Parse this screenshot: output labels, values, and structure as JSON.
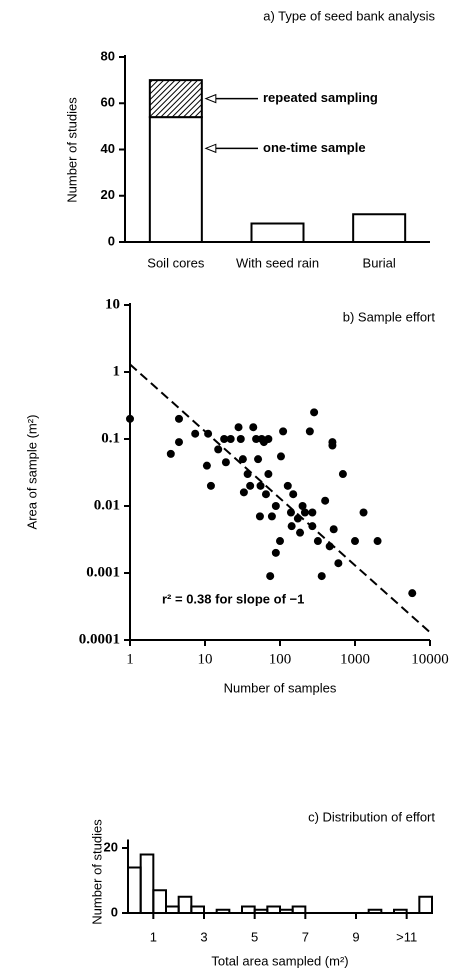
{
  "chart_data": [
    {
      "type": "bar",
      "title": "a) Type of seed bank analysis",
      "y_label": "Number of studies",
      "categories": [
        "Soil cores",
        "With seed rain",
        "Burial"
      ],
      "stacked": true,
      "series": [
        {
          "name": "one-time sample",
          "color": "#ffffff",
          "values": [
            54,
            8,
            12
          ]
        },
        {
          "name": "repeated sampling",
          "color": "#000000",
          "pattern": "hatched",
          "values": [
            16,
            0,
            0
          ]
        }
      ],
      "ylim": [
        0,
        80
      ],
      "yticks": [
        0,
        20,
        40,
        60,
        80
      ]
    },
    {
      "type": "scatter",
      "title": "b) Sample effort",
      "x_label": "Number of samples",
      "y_label": "Area of sample (m²)",
      "annotation": "r² = 0.38 for slope of −1",
      "log_x": true,
      "log_y": true,
      "color": "#000000",
      "x": [
        1,
        4.5,
        3.5,
        4.5,
        7.4,
        10.6,
        11,
        12,
        15,
        18,
        22,
        19,
        28,
        30,
        32,
        33,
        37,
        44,
        48,
        57,
        70,
        51,
        55,
        54,
        61,
        78,
        70,
        88,
        103,
        110,
        127,
        140,
        143,
        100,
        88,
        173,
        74,
        215,
        250,
        285,
        270,
        270,
        320,
        185,
        400,
        360,
        460,
        520,
        600,
        690,
        500,
        500,
        1300,
        1000,
        2000,
        5800,
        150,
        200,
        65,
        40
      ],
      "y": [
        0.2,
        0.2,
        0.06,
        0.09,
        0.12,
        0.04,
        0.12,
        0.02,
        0.07,
        0.1,
        0.1,
        0.045,
        0.15,
        0.1,
        0.05,
        0.016,
        0.03,
        0.15,
        0.1,
        0.1,
        0.1,
        0.05,
        0.02,
        0.007,
        0.09,
        0.007,
        0.03,
        0.01,
        0.055,
        0.13,
        0.02,
        0.008,
        0.005,
        0.003,
        0.002,
        0.0065,
        0.0009,
        0.008,
        0.13,
        0.25,
        0.008,
        0.005,
        0.003,
        0.004,
        0.012,
        0.0009,
        0.0025,
        0.0045,
        0.0014,
        0.03,
        0.08,
        0.09,
        0.008,
        0.003,
        0.003,
        0.0005,
        0.015,
        0.01,
        0.015,
        0.02
      ],
      "trend_line": {
        "x": [
          1,
          10000
        ],
        "y": [
          1.3,
          0.00013
        ]
      },
      "xlim": [
        1,
        10000
      ],
      "xticks": [
        1,
        10,
        100,
        1000,
        10000
      ],
      "ylim": [
        0.0001,
        10
      ],
      "yticks": [
        0.0001,
        0.001,
        0.01,
        0.1,
        1,
        10
      ]
    },
    {
      "type": "histogram",
      "title": "c) Distribution of effort",
      "x_label": "Total area sampled (m²)",
      "y_label": "Number of studies",
      "bins": [
        0,
        0.5,
        1,
        1.5,
        2,
        2.5,
        3,
        3.5,
        4,
        4.5,
        5,
        5.5,
        6,
        6.5,
        7,
        7.5,
        8,
        8.5,
        9,
        9.5,
        10,
        10.5,
        11,
        11.5,
        12
      ],
      "values": [
        14,
        18,
        7,
        2,
        5,
        2,
        0,
        1,
        0,
        2,
        1,
        2,
        1,
        2,
        0,
        0,
        0,
        0,
        0,
        1,
        0,
        1,
        0,
        5
      ],
      "color": "#000000",
      "xlim": [
        0,
        12
      ],
      "xticks": [
        1,
        3,
        5,
        7,
        9,
        {
          "value": 11,
          "label": ">11"
        }
      ],
      "ylim": [
        0,
        22
      ],
      "yticks": [
        0,
        20
      ]
    }
  ]
}
